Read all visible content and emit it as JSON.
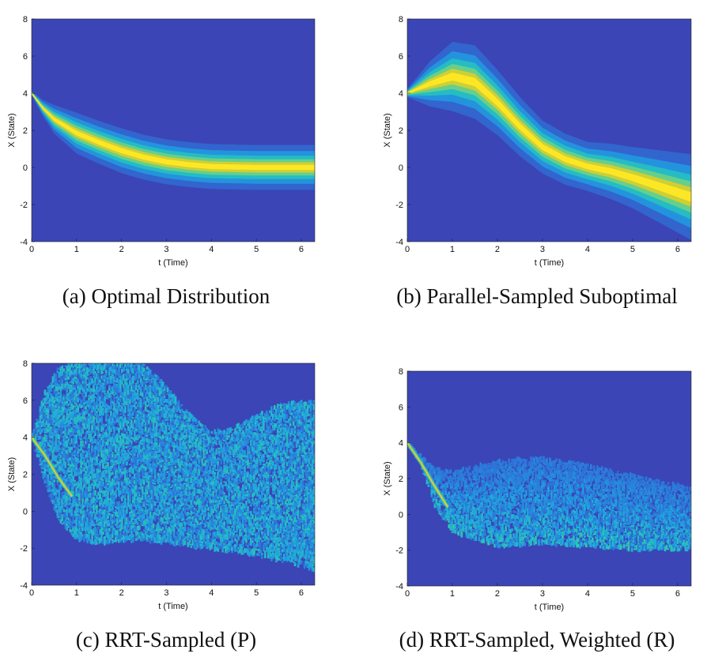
{
  "colors": {
    "background": "#3b45b5",
    "colormap": [
      "#3b45b5",
      "#2e72d8",
      "#1fa3e0",
      "#28c6b6",
      "#7ed37a",
      "#d6cf2e",
      "#fde725"
    ]
  },
  "chart_data": [
    {
      "id": "a",
      "type": "heatmap",
      "style": "smooth-band",
      "caption": "(a) Optimal Distribution",
      "xlabel": "t (Time)",
      "ylabel": "X (State)",
      "xlim": [
        0,
        6.3
      ],
      "ylim": [
        -4,
        8
      ],
      "xticks": [
        "0",
        "1",
        "2",
        "3",
        "4",
        "5",
        "6"
      ],
      "yticks": [
        "-4",
        "-2",
        "0",
        "2",
        "4",
        "6",
        "8"
      ],
      "mean": {
        "t": [
          0,
          0.25,
          0.5,
          1,
          1.5,
          2,
          2.5,
          3,
          3.5,
          4,
          5,
          6.3
        ],
        "x": [
          4.0,
          3.2,
          2.6,
          1.85,
          1.35,
          0.9,
          0.55,
          0.3,
          0.15,
          0.05,
          0.0,
          0.0
        ]
      },
      "spread": {
        "t": [
          0,
          0.5,
          1,
          2,
          3,
          4,
          5,
          6.3
        ],
        "x": [
          0.05,
          0.35,
          0.5,
          0.55,
          0.55,
          0.55,
          0.55,
          0.55
        ]
      }
    },
    {
      "id": "b",
      "type": "heatmap",
      "style": "smooth-band",
      "caption": "(b) Parallel-Sampled Suboptimal",
      "xlabel": "t (Time)",
      "ylabel": "X (State)",
      "xlim": [
        0,
        6.3
      ],
      "ylim": [
        -4,
        8
      ],
      "xticks": [
        "0",
        "1",
        "2",
        "3",
        "4",
        "5",
        "6"
      ],
      "yticks": [
        "-4",
        "-2",
        "0",
        "2",
        "4",
        "6",
        "8"
      ],
      "mean": {
        "t": [
          0,
          0.5,
          1,
          1.5,
          2,
          2.5,
          3,
          3.5,
          4,
          4.5,
          5,
          5.5,
          6.3
        ],
        "x": [
          4.0,
          4.5,
          4.9,
          4.6,
          3.5,
          2.2,
          1.1,
          0.45,
          0.05,
          -0.2,
          -0.55,
          -0.95,
          -1.6
        ]
      },
      "spread": {
        "t": [
          0,
          0.5,
          1,
          1.5,
          2,
          3,
          4,
          5,
          6.3
        ],
        "x": [
          0.1,
          0.55,
          0.85,
          0.9,
          0.8,
          0.65,
          0.6,
          0.75,
          1.05
        ]
      }
    },
    {
      "id": "c",
      "type": "heatmap",
      "style": "noisy-fan",
      "caption": "(c) RRT-Sampled (P)",
      "xlabel": "t (Time)",
      "ylabel": "X (State)",
      "xlim": [
        0,
        6.3
      ],
      "ylim": [
        -4,
        8
      ],
      "xticks": [
        "0",
        "1",
        "2",
        "3",
        "4",
        "5",
        "6"
      ],
      "yticks": [
        "-4",
        "-2",
        "0",
        "2",
        "4",
        "6",
        "8"
      ],
      "upper": {
        "t": [
          0,
          0.3,
          0.6,
          1,
          2,
          2.5,
          3,
          3.5,
          4,
          4.5,
          5,
          5.5,
          6.3
        ],
        "x": [
          4.0,
          6.5,
          7.8,
          8.0,
          8.0,
          8.0,
          6.8,
          5.3,
          4.3,
          4.5,
          5.2,
          5.8,
          6.0
        ]
      },
      "lower": {
        "t": [
          0,
          0.3,
          0.6,
          1,
          1.5,
          2,
          3,
          4,
          5,
          6,
          6.3
        ],
        "x": [
          4.0,
          1.5,
          -0.5,
          -1.5,
          -1.8,
          -1.6,
          -1.7,
          -2.1,
          -2.4,
          -3.0,
          -3.2
        ]
      },
      "ridge": {
        "t": [
          0,
          0.3,
          0.6,
          0.9
        ],
        "x": [
          4.0,
          3.0,
          1.8,
          0.8
        ]
      }
    },
    {
      "id": "d",
      "type": "heatmap",
      "style": "noisy-fan",
      "caption": "(d) RRT-Sampled, Weighted (R)",
      "xlabel": "t (Time)",
      "ylabel": "X (State)",
      "xlim": [
        0,
        6.3
      ],
      "ylim": [
        -4,
        8
      ],
      "xticks": [
        "0",
        "1",
        "2",
        "3",
        "4",
        "5",
        "6"
      ],
      "yticks": [
        "-4",
        "-2",
        "0",
        "2",
        "4",
        "6",
        "8"
      ],
      "upper": {
        "t": [
          0,
          0.3,
          0.6,
          1,
          2,
          3,
          4,
          5,
          6.3
        ],
        "x": [
          4.0,
          3.3,
          2.6,
          2.4,
          3.0,
          3.2,
          2.8,
          2.2,
          1.5
        ]
      },
      "lower": {
        "t": [
          0,
          0.3,
          0.6,
          1,
          2,
          3,
          4,
          5,
          6.3
        ],
        "x": [
          4.0,
          2.8,
          0.5,
          -1.0,
          -1.8,
          -1.7,
          -1.8,
          -2.0,
          -2.0
        ]
      },
      "ridge": {
        "t": [
          0,
          0.3,
          0.6,
          0.9
        ],
        "x": [
          4.0,
          2.9,
          1.6,
          0.4
        ]
      }
    }
  ]
}
